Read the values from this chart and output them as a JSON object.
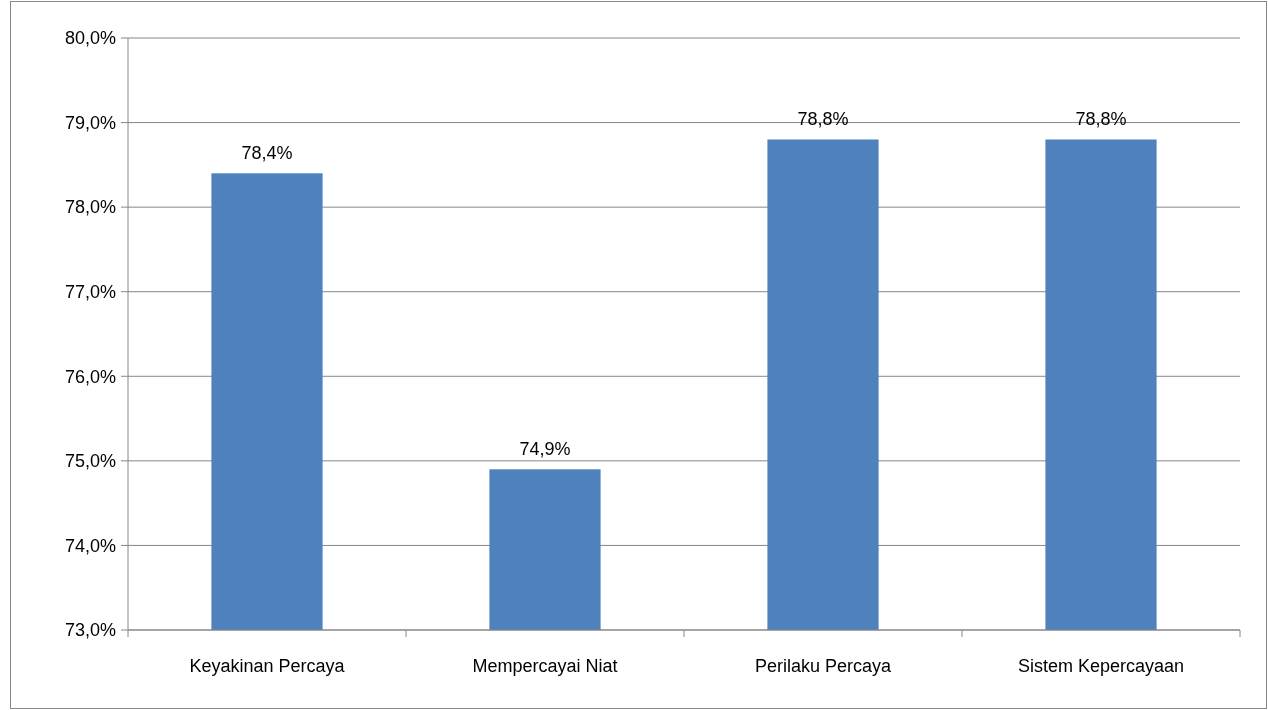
{
  "chart_data": {
    "type": "bar",
    "categories": [
      "Keyakinan Percaya",
      "Mempercayai Niat",
      "Perilaku Percaya",
      "Sistem Kepercayaan"
    ],
    "values": [
      78.4,
      74.9,
      78.8,
      78.8
    ],
    "value_labels": [
      "78,4%",
      "74,9%",
      "78,8%",
      "78,8%"
    ],
    "color": "#4f81bd",
    "ylim": [
      73,
      80
    ],
    "yticks": [
      {
        "value": 73,
        "label": "73,0%"
      },
      {
        "value": 74,
        "label": "74,0%"
      },
      {
        "value": 75,
        "label": "75,0%"
      },
      {
        "value": 76,
        "label": "76,0%"
      },
      {
        "value": 77,
        "label": "77,0%"
      },
      {
        "value": 78,
        "label": "78,0%"
      },
      {
        "value": 79,
        "label": "79,0%"
      },
      {
        "value": 80,
        "label": "80,0%"
      }
    ],
    "grid": "y"
  }
}
